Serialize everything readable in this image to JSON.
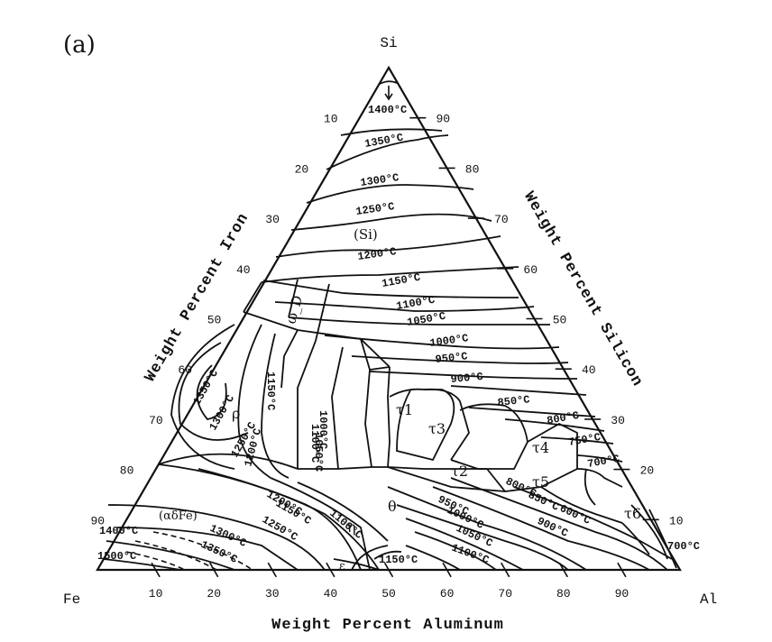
{
  "panel_label": "(a)",
  "vertices": {
    "top": "Si",
    "left": "Fe",
    "right": "Al"
  },
  "axis_titles": {
    "left": "Weight Percent Iron",
    "right": "Weight Percent Silicon",
    "bottom": "Weight Percent Aluminum"
  },
  "ticks": {
    "bottom": [
      "10",
      "20",
      "30",
      "40",
      "50",
      "60",
      "70",
      "80",
      "90"
    ],
    "right": [
      "10",
      "20",
      "30",
      "40",
      "50",
      "60",
      "70",
      "80",
      "90"
    ],
    "left": [
      "10",
      "20",
      "30",
      "40",
      "50",
      "60",
      "70",
      "80",
      "90"
    ]
  },
  "phase_labels": [
    "(Si)",
    "ω_D",
    "ρ",
    "τ1",
    "τ3",
    "τ2",
    "τ4",
    "τ5",
    "τ6",
    "θ",
    "η",
    "ε",
    "(αδFe)"
  ],
  "isotherm_labels": [
    "1400°C",
    "1350°C",
    "1300°C",
    "1250°C",
    "1200°C",
    "1150°C",
    "1100°C",
    "1050°C",
    "1000°C",
    "950°C",
    "900°C",
    "850°C",
    "800°C",
    "750°C",
    "700°C",
    "1350°C",
    "1300°C",
    "1250°C",
    "1200°C",
    "1150°C",
    "1100°C",
    "1050°C",
    "1000°C",
    "1200°C",
    "1150°C",
    "1100°C",
    "1250°C",
    "950°C",
    "1000°C",
    "1050°C",
    "1100°C",
    "900°C",
    "850°C",
    "800°C",
    "600°C",
    "1150°C",
    "1400°C",
    "1350°C",
    "1300°C",
    "1500°C",
    "700°C"
  ],
  "colors": {
    "line": "#111111",
    "background": "#ffffff"
  }
}
